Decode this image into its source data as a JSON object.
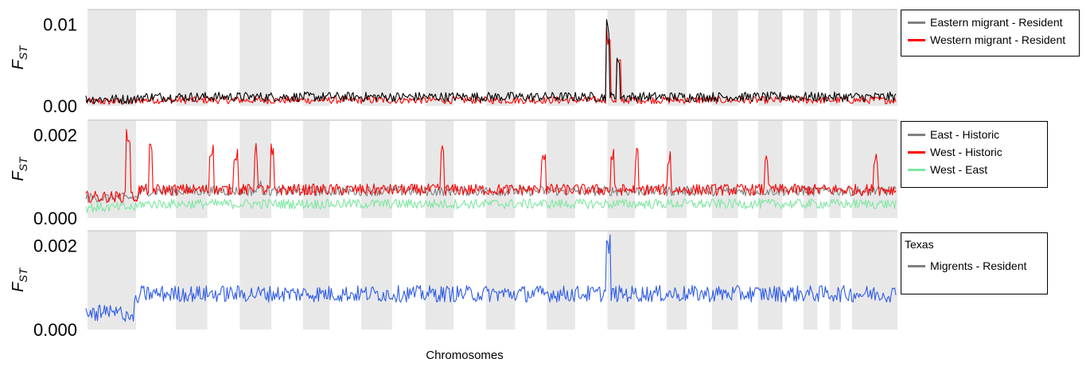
{
  "xlabel": "Chromosomes",
  "colors": {
    "band": "#e8e8e8",
    "frame": "#cfcfcf"
  },
  "chart_data": [
    {
      "type": "line",
      "id": "panel-1",
      "ylabel": "F",
      "ylabel_sub": "ST",
      "ylim": [
        0,
        0.0118
      ],
      "yticks": [
        {
          "value": 0.0,
          "label": "0.00"
        },
        {
          "value": 0.01,
          "label": "0.01"
        }
      ],
      "legend": {
        "title": "",
        "position": "right"
      },
      "series": [
        {
          "name": "Western migrant - Resident",
          "color": "#ff0000",
          "base": 0.0007,
          "noise": 0.00045,
          "spikes": [
            [
              0.645,
              0.01
            ],
            [
              0.658,
              0.006
            ]
          ]
        },
        {
          "name": "Eastern migrant - Resident",
          "color": "#000000",
          "legend_color": "#808080",
          "base": 0.0011,
          "noise": 0.0006,
          "spikes": [
            [
              0.644,
              0.0108
            ],
            [
              0.657,
              0.0066
            ]
          ]
        }
      ]
    },
    {
      "type": "line",
      "id": "panel-2",
      "ylabel": "F",
      "ylabel_sub": "ST",
      "ylim": [
        0,
        0.00235
      ],
      "yticks": [
        {
          "value": 0.0,
          "label": "0.000"
        },
        {
          "value": 0.002,
          "label": "0.002"
        }
      ],
      "legend": {
        "title": "",
        "position": "right"
      },
      "series": [
        {
          "name": "East - Historic",
          "color": "#808080",
          "base": 0.00065,
          "noise": 0.00012,
          "spikes": [
            [
              0.215,
              0.0009
            ]
          ]
        },
        {
          "name": "West - Historic",
          "color": "#ff0000",
          "base": 0.00068,
          "noise": 0.00014,
          "spikes": [
            [
              0.052,
              0.0023
            ],
            [
              0.08,
              0.0018
            ],
            [
              0.155,
              0.0018
            ],
            [
              0.185,
              0.0018
            ],
            [
              0.21,
              0.0018
            ],
            [
              0.23,
              0.0018
            ],
            [
              0.44,
              0.0018
            ],
            [
              0.565,
              0.0018
            ],
            [
              0.65,
              0.0017
            ],
            [
              0.68,
              0.0017
            ],
            [
              0.72,
              0.0017
            ],
            [
              0.84,
              0.0017
            ],
            [
              0.975,
              0.0017
            ]
          ]
        },
        {
          "name": "West - East",
          "color": "#7ee8a2",
          "base": 0.00034,
          "noise": 0.00012,
          "spikes": []
        }
      ]
    },
    {
      "type": "line",
      "id": "panel-3",
      "ylabel": "F",
      "ylabel_sub": "ST",
      "ylim": [
        0,
        0.00235
      ],
      "yticks": [
        {
          "value": 0.0,
          "label": "0.000"
        },
        {
          "value": 0.002,
          "label": "0.002"
        }
      ],
      "legend": {
        "title": "Texas",
        "position": "right"
      },
      "series": [
        {
          "name": "Migrents - Resident",
          "color": "#2f5ce6",
          "legend_color": "#808080",
          "base": 0.00085,
          "noise": 0.0002,
          "spikes": [
            [
              0.645,
              0.0023
            ]
          ]
        }
      ]
    }
  ]
}
